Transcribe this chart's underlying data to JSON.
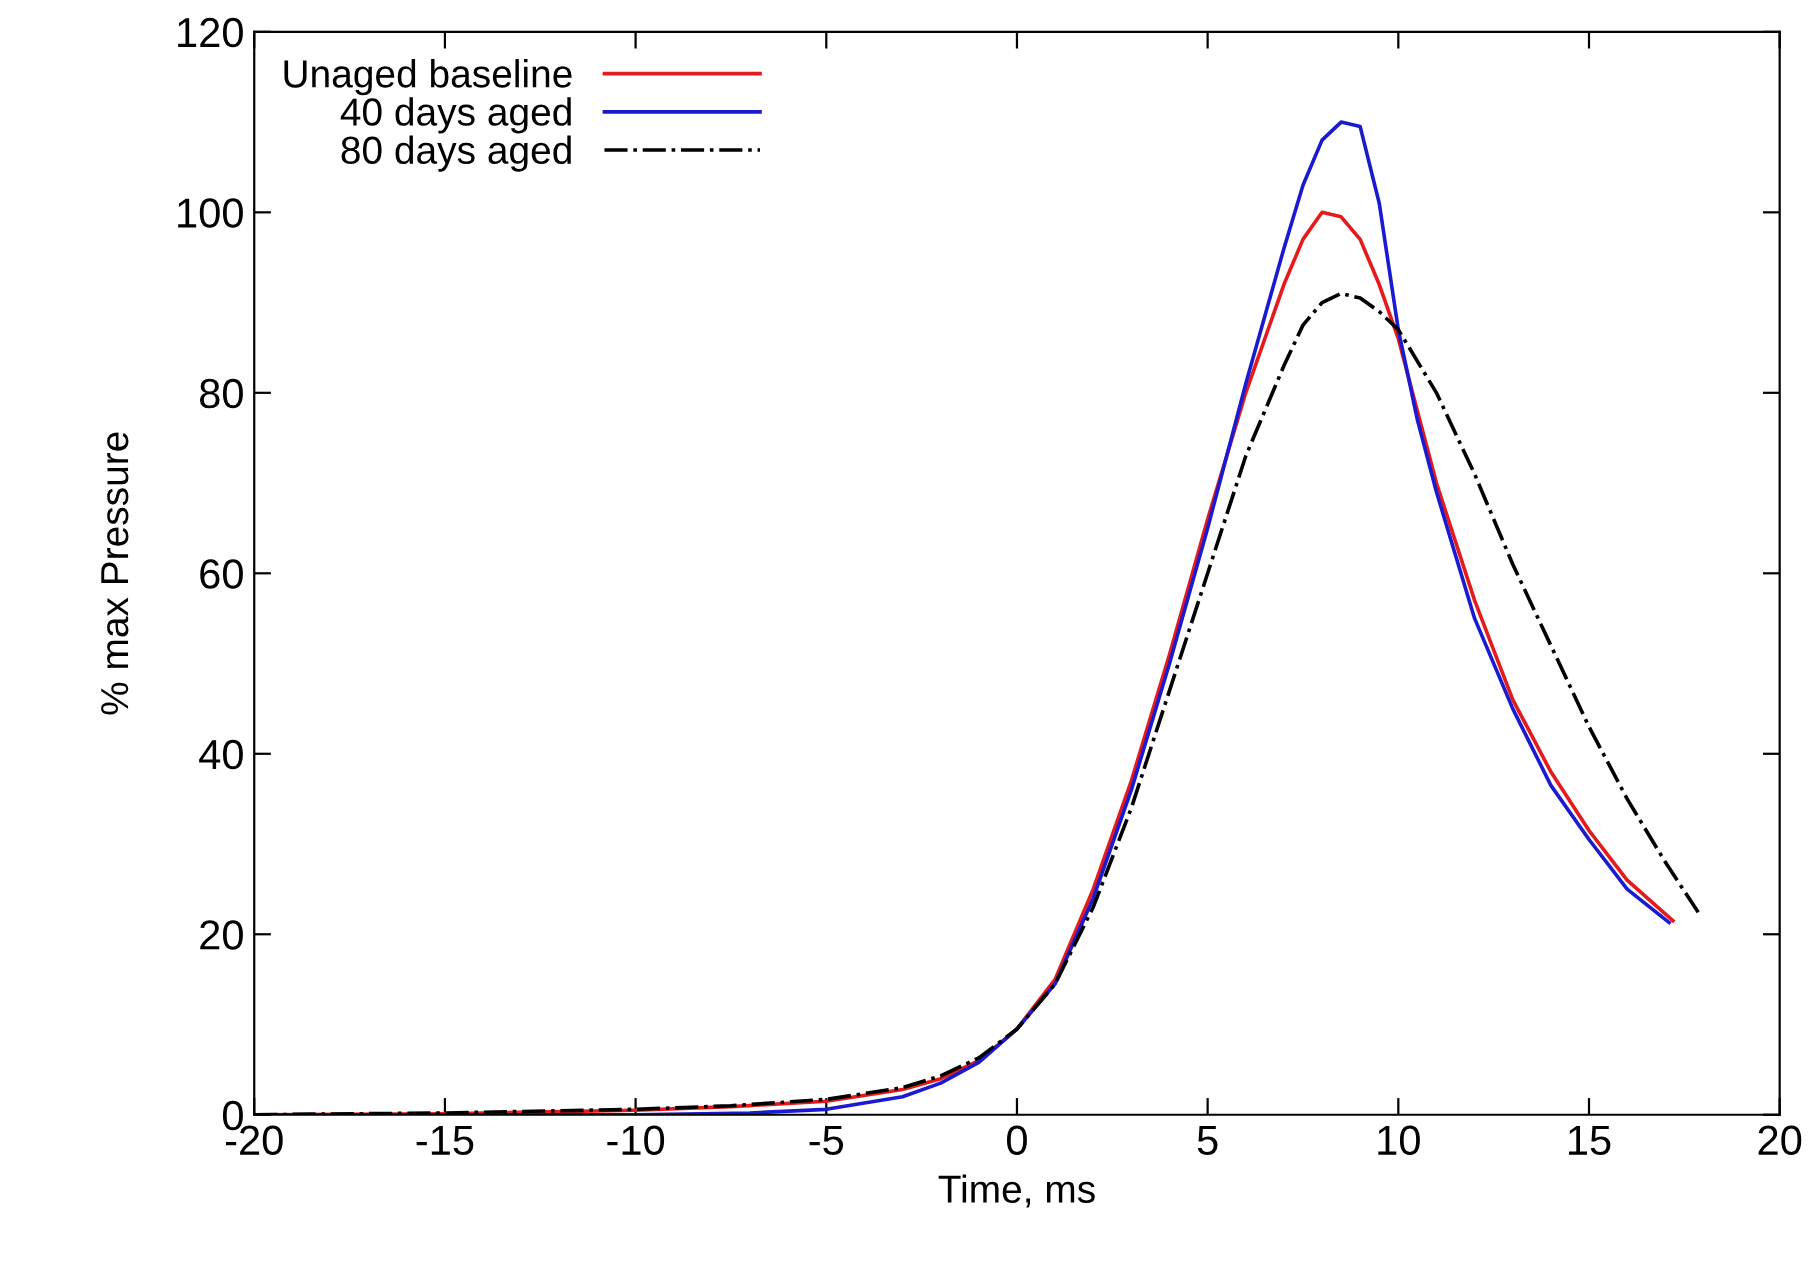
{
  "chart_data": {
    "type": "line",
    "xlabel": "Time, ms",
    "ylabel": "% max Pressure",
    "xlim": [
      -20,
      20
    ],
    "ylim": [
      0,
      120
    ],
    "xticks": [
      -20,
      -15,
      -10,
      -5,
      0,
      5,
      10,
      15,
      20
    ],
    "yticks": [
      0,
      20,
      40,
      60,
      80,
      100,
      120
    ],
    "grid": false,
    "legend": "top left",
    "series": [
      {
        "name": "Unaged baseline",
        "color": "#e41a1c",
        "line_style": "solid",
        "x": [
          -20,
          -15,
          -10,
          -7.5,
          -5,
          -3,
          -2,
          -1,
          0,
          1,
          2,
          3,
          4,
          5,
          6,
          7,
          7.5,
          8,
          8.5,
          9,
          9.5,
          10,
          10.5,
          11,
          12,
          13,
          14,
          15,
          16,
          17.2
        ],
        "values": [
          0,
          0.1,
          0.5,
          0.9,
          1.5,
          2.8,
          4,
          6,
          9.5,
          15,
          25,
          37,
          51,
          66,
          80,
          92,
          97,
          100,
          99.5,
          97,
          92,
          86,
          78,
          70,
          57,
          46,
          38,
          31.5,
          26,
          21.5
        ]
      },
      {
        "name": "40 days aged",
        "color": "#1a1ad0",
        "line_style": "solid",
        "x": [
          -20,
          -10,
          -7,
          -5,
          -3,
          -2,
          -1,
          0,
          1,
          2,
          3,
          4,
          5,
          6,
          7,
          7.5,
          8,
          8.5,
          9,
          9.5,
          10,
          10.5,
          11,
          12,
          13,
          14,
          15,
          16,
          17.1
        ],
        "values": [
          0,
          0,
          0.2,
          0.6,
          2,
          3.5,
          5.8,
          9.5,
          14.5,
          24,
          36,
          50,
          65,
          81,
          96,
          103,
          108,
          110,
          109.5,
          101,
          87,
          77,
          69,
          55,
          45,
          36.5,
          30.5,
          25,
          21.3
        ]
      },
      {
        "name": "80 days aged",
        "color": "#000000",
        "line_style": "dashdot",
        "x": [
          -20,
          -15,
          -10,
          -7.5,
          -5,
          -3,
          -2,
          -1,
          0,
          1,
          2,
          3,
          4,
          5,
          6,
          7,
          7.5,
          8,
          8.5,
          9,
          9.5,
          10,
          11,
          12,
          13,
          14,
          15,
          16,
          17,
          17.9
        ],
        "values": [
          0,
          0.2,
          0.6,
          1,
          1.7,
          3,
          4.3,
          6.3,
          9.5,
          14.5,
          23,
          34,
          47,
          60,
          73,
          83,
          87.5,
          90,
          91,
          90.5,
          89,
          87,
          80,
          71,
          61,
          52,
          43,
          35,
          28,
          22.2
        ]
      }
    ]
  }
}
